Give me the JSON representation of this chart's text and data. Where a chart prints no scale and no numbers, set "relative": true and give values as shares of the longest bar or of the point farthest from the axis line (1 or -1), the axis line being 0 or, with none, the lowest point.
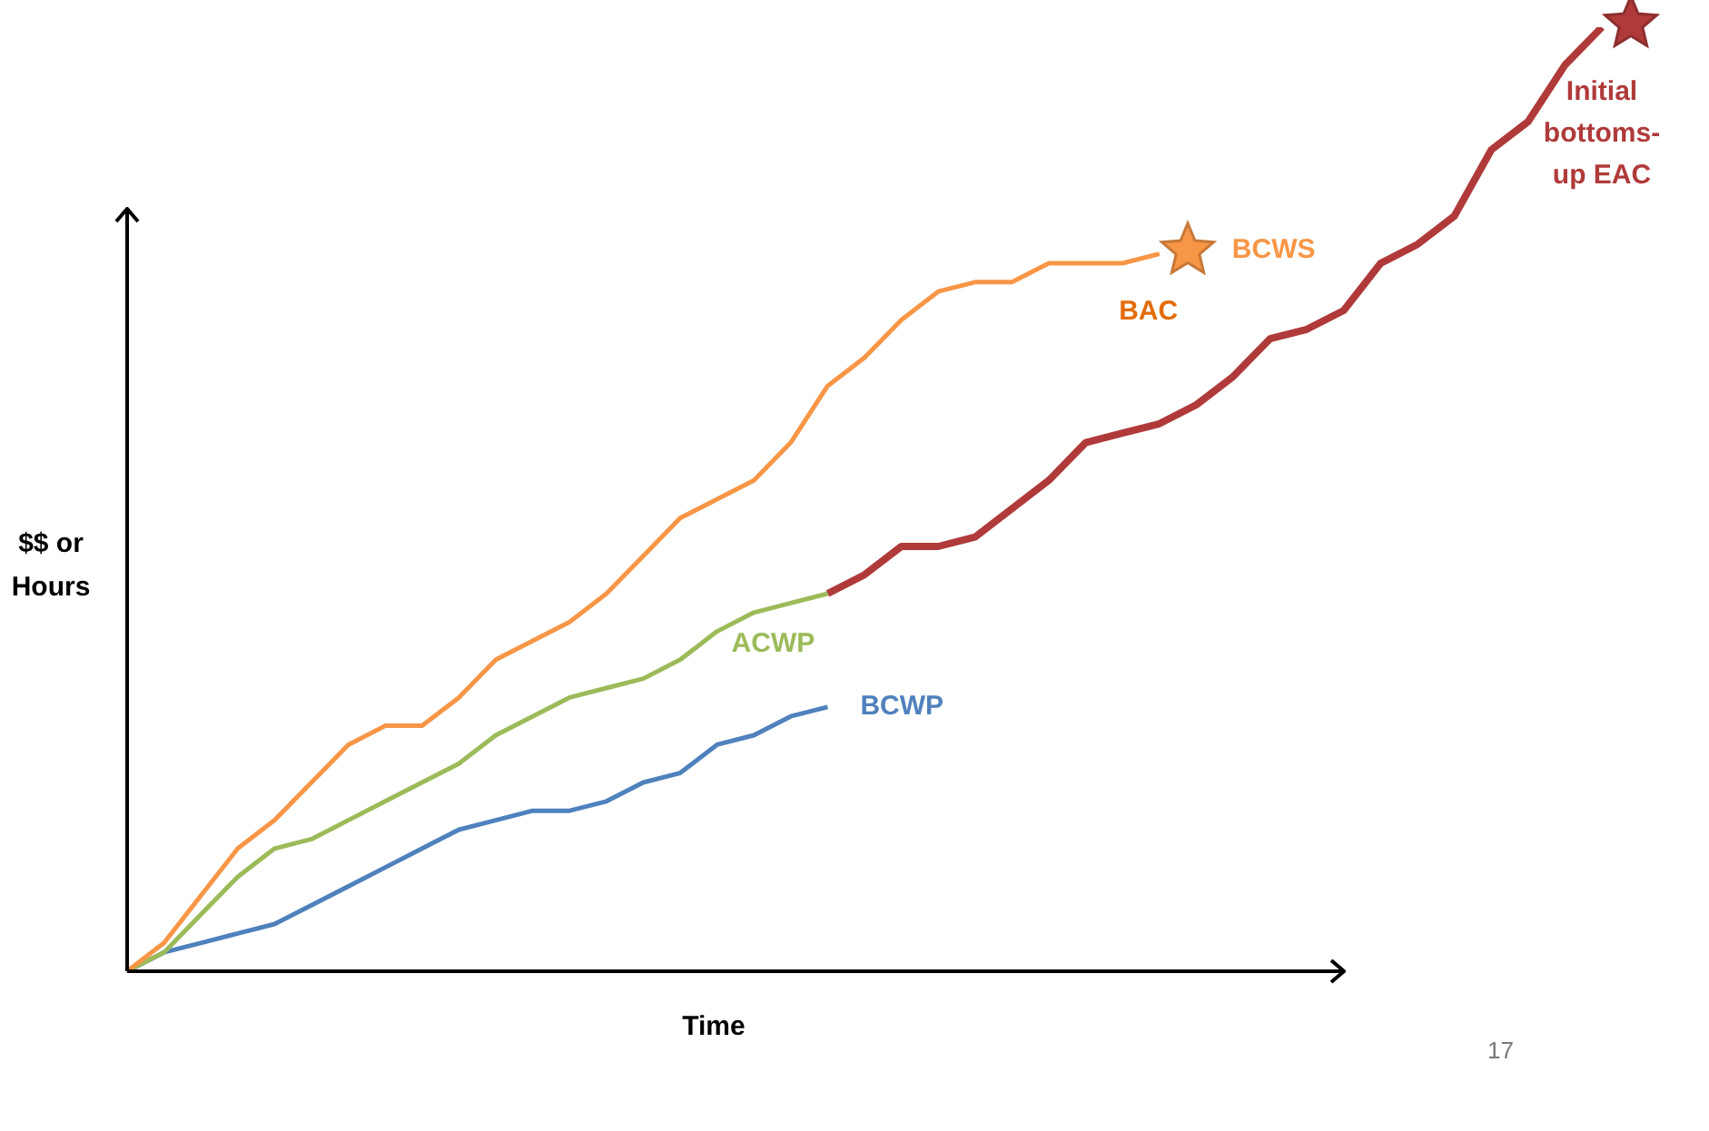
{
  "chart_data": {
    "type": "line",
    "relative": true,
    "xlabel": "Time",
    "ylabel": "$$ or Hours",
    "categories": [
      null,
      null,
      null,
      null,
      null,
      null,
      null,
      null,
      null,
      null,
      null,
      null,
      null,
      null,
      null,
      null,
      null,
      null,
      null,
      null,
      null,
      null,
      null,
      null,
      null,
      null,
      null,
      null,
      null,
      null,
      null,
      null,
      null,
      null,
      null,
      null,
      null,
      null,
      null,
      null,
      null
    ],
    "series": [
      {
        "name": "BCWS",
        "color": "#f79646",
        "values": [
          0,
          0.03,
          0.08,
          0.13,
          0.16,
          0.2,
          0.24,
          0.26,
          0.26,
          0.29,
          0.33,
          0.35,
          0.37,
          0.4,
          0.44,
          0.48,
          0.5,
          0.52,
          0.56,
          0.62,
          0.65,
          0.69,
          0.72,
          0.73,
          0.73,
          0.75,
          0.75,
          0.75,
          0.76,
          null,
          null,
          null,
          null,
          null,
          null,
          null,
          null,
          null,
          null,
          null,
          null
        ]
      },
      {
        "name": "ACWP",
        "color": "#9bbb59",
        "values": [
          0,
          0.02,
          0.06,
          0.1,
          0.13,
          0.14,
          0.16,
          0.18,
          0.2,
          0.22,
          0.25,
          0.27,
          0.29,
          0.3,
          0.31,
          0.33,
          0.36,
          0.38,
          0.39,
          0.4,
          null,
          null,
          null,
          null,
          null,
          null,
          null,
          null,
          null,
          null,
          null,
          null,
          null,
          null,
          null,
          null,
          null,
          null,
          null,
          null,
          null
        ]
      },
      {
        "name": "BCWP",
        "color": "#4f81bd",
        "values": [
          0,
          0.02,
          0.03,
          0.04,
          0.05,
          0.07,
          0.09,
          0.11,
          0.13,
          0.15,
          0.16,
          0.17,
          0.17,
          0.18,
          0.2,
          0.21,
          0.24,
          0.25,
          0.27,
          0.28,
          null,
          null,
          null,
          null,
          null,
          null,
          null,
          null,
          null,
          null,
          null,
          null,
          null,
          null,
          null,
          null,
          null,
          null,
          null,
          null,
          null
        ]
      },
      {
        "name": "Initial bottoms-up EAC",
        "color": "#b03a3a",
        "values": [
          null,
          null,
          null,
          null,
          null,
          null,
          null,
          null,
          null,
          null,
          null,
          null,
          null,
          null,
          null,
          null,
          null,
          null,
          null,
          0.4,
          0.42,
          0.45,
          0.45,
          0.46,
          0.49,
          0.52,
          0.56,
          0.57,
          0.58,
          0.6,
          0.63,
          0.67,
          0.68,
          0.7,
          0.75,
          0.77,
          0.8,
          0.87,
          0.9,
          0.96,
          1
        ]
      }
    ],
    "marker": "none",
    "annotations": [
      "BAC",
      "17"
    ]
  }
}
